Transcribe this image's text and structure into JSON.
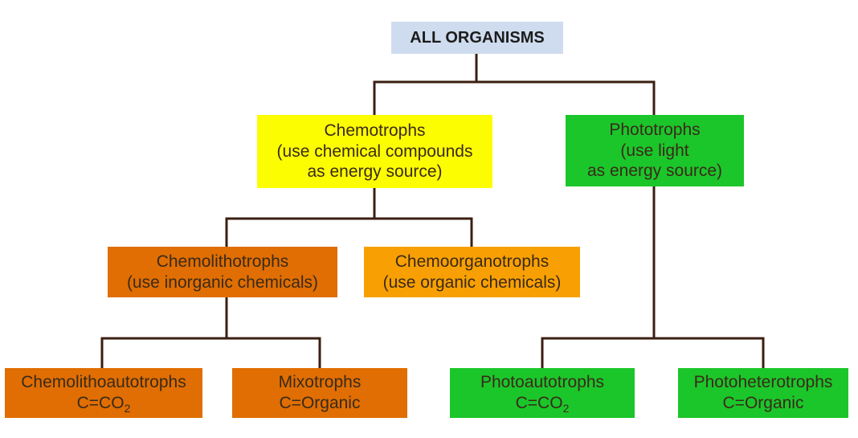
{
  "root": {
    "label": "ALL ORGANISMS"
  },
  "chemotrophs": {
    "line1": "Chemotrophs",
    "line2": "(use chemical compounds",
    "line3": "as energy source)"
  },
  "phototrophs": {
    "line1": "Phototrophs",
    "line2": "(use light",
    "line3": "as energy source)"
  },
  "chemolithotrophs": {
    "line1": "Chemolithotrophs",
    "line2": "(use inorganic chemicals)"
  },
  "chemoorganotrophs": {
    "line1": "Chemoorganotrophs",
    "line2": "(use organic chemicals)"
  },
  "chemolithoautotrophs": {
    "line1": "Chemolithoautotrophs",
    "line2_prefix": "C=CO",
    "line2_sub": "2"
  },
  "mixotrophs": {
    "line1": "Mixotrophs",
    "line2": "C=Organic"
  },
  "photoautotrophs": {
    "line1": "Photoautotrophs",
    "line2_prefix": "C=CO",
    "line2_sub": "2"
  },
  "photoheterotrophs": {
    "line1": "Photoheterotrophs",
    "line2": "C=Organic"
  },
  "colors": {
    "root_fill": "#cfdcef",
    "chemotrophs_fill": "#fdfd02",
    "phototrophs_fill": "#1bc62a",
    "chemolitho_fill": "#e06e02",
    "chemoorgano_fill": "#f8a003",
    "connector": "#3b1f12"
  }
}
